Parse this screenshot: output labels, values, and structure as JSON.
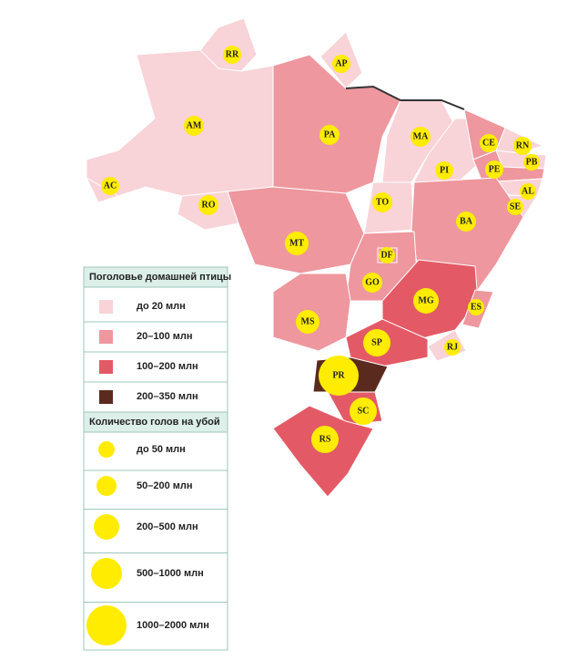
{
  "states": [
    {
      "label": "AM",
      "color": "#f8d3d8"
    },
    {
      "label": "RR",
      "color": "#f8d3d8"
    },
    {
      "label": "AP",
      "color": "#f8d3d8"
    },
    {
      "label": "PA",
      "color": "#ee979e"
    },
    {
      "label": "MA",
      "color": "#f8d3d8"
    },
    {
      "label": "PI",
      "color": "#f8d3d8"
    },
    {
      "label": "CE",
      "color": "#ee979e"
    },
    {
      "label": "RN",
      "color": "#f8d3d8"
    },
    {
      "label": "PB",
      "color": "#f8d3d8"
    },
    {
      "label": "PE",
      "color": "#ee979e"
    },
    {
      "label": "AL",
      "color": "#f8d3d8"
    },
    {
      "label": "SE",
      "color": "#f8d3d8"
    },
    {
      "label": "AC",
      "color": "#f8d3d8"
    },
    {
      "label": "RO",
      "color": "#f8d3d8"
    },
    {
      "label": "TO",
      "color": "#f8d3d8"
    },
    {
      "label": "BA",
      "color": "#ee979e"
    },
    {
      "label": "MT",
      "color": "#ee979e"
    },
    {
      "label": "GO",
      "color": "#ee979e"
    },
    {
      "label": "DF",
      "color": "#ee979e"
    },
    {
      "label": "MS",
      "color": "#ee979e"
    },
    {
      "label": "MG",
      "color": "#e35a66"
    },
    {
      "label": "ES",
      "color": "#ee979e"
    },
    {
      "label": "SP",
      "color": "#e35a66"
    },
    {
      "label": "RJ",
      "color": "#f8d3d8"
    },
    {
      "label": "PR",
      "color": "#5b2a1f"
    },
    {
      "label": "SC",
      "color": "#e35a66"
    },
    {
      "label": "RS",
      "color": "#e35a66"
    }
  ],
  "legend": {
    "stock_title": "Поголовье домашней птицы",
    "stock": [
      {
        "label": "до 20 млн",
        "color": "#f8d3d8"
      },
      {
        "label": "20–100 млн",
        "color": "#ee979e"
      },
      {
        "label": "100–200 млн",
        "color": "#e35a66"
      },
      {
        "label": "200–350 млн",
        "color": "#5b2a1f"
      }
    ],
    "slaughter_title": "Количество голов на убой",
    "slaughter": [
      "до 50 млн",
      "50–200 млн",
      "200–500 млн",
      "500–1000 млн",
      "1000–2000 млн"
    ],
    "circle_color": "#ffec00"
  }
}
